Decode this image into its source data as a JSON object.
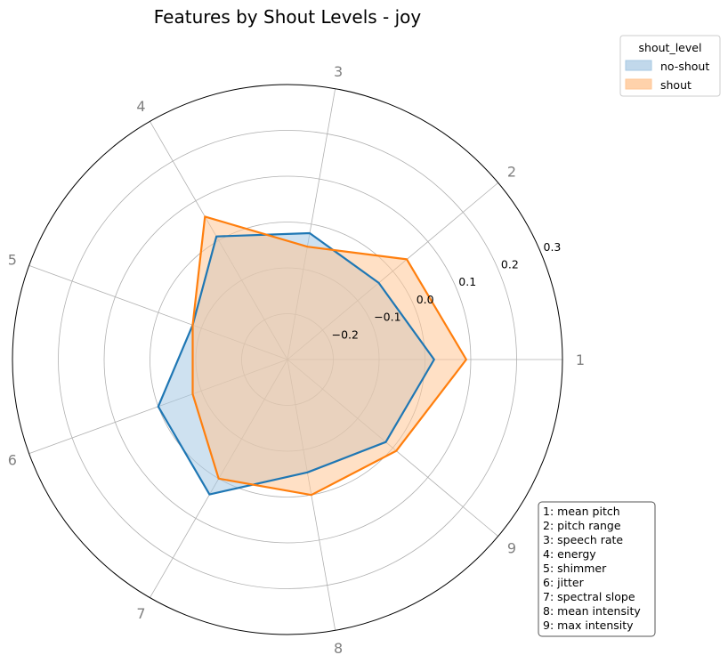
{
  "chart_data": {
    "type": "radar",
    "title": "Features by Shout Levels - joy",
    "axes": [
      "1",
      "2",
      "3",
      "4",
      "5",
      "6",
      "7",
      "8",
      "9"
    ],
    "r_ticks": [
      -0.2,
      -0.1,
      0.0,
      0.1,
      0.2,
      0.3
    ],
    "r_tick_labels": [
      "−0.2",
      "−0.1",
      "0.0",
      "0.1",
      "0.2",
      "0.3"
    ],
    "rlim": [
      -0.3,
      0.3
    ],
    "grid": true,
    "legend": {
      "title": "shout_level",
      "placement": "top-right, outside plot"
    },
    "series": [
      {
        "name": "no-shout",
        "color": "#1f77b4",
        "fill": "#a6c8e3",
        "values": [
          0.02,
          -0.04,
          -0.02,
          0.01,
          -0.08,
          0.0,
          0.04,
          -0.05,
          -0.02
        ]
      },
      {
        "name": "shout",
        "color": "#ff7f0e",
        "fill": "#ffc796",
        "values": [
          0.09,
          0.04,
          -0.05,
          0.06,
          -0.08,
          -0.08,
          0.0,
          0.0,
          0.01
        ]
      }
    ],
    "feature_key": [
      "1: mean pitch",
      "2: pitch range",
      "3: speech rate",
      "4: energy",
      "5: shimmer",
      "6: jitter",
      "7: spectral slope",
      "8: mean intensity",
      "9: max intensity"
    ]
  }
}
